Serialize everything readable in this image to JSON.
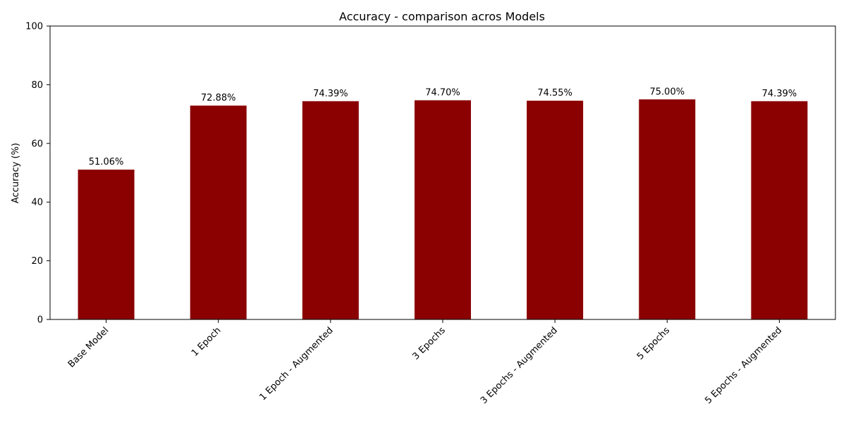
{
  "chart_data": {
    "type": "bar",
    "title": "Accuracy - comparison acros Models",
    "xlabel": "",
    "ylabel": "Accuracy (%)",
    "categories": [
      "Base Model",
      "1 Epoch",
      "1 Epoch - Augmented",
      "3 Epochs",
      "3 Epochs - Augmented",
      "5 Epochs",
      "5 Epochs - Augmented"
    ],
    "values": [
      51.06,
      72.88,
      74.39,
      74.7,
      74.55,
      75.0,
      74.39
    ],
    "value_labels": [
      "51.06%",
      "72.88%",
      "74.39%",
      "74.70%",
      "74.55%",
      "75.00%",
      "74.39%"
    ],
    "ylim": [
      0,
      100
    ],
    "yticks": [
      0,
      20,
      40,
      60,
      80,
      100
    ],
    "grid": false,
    "legend": "none",
    "bar_color": "#8b0000"
  }
}
